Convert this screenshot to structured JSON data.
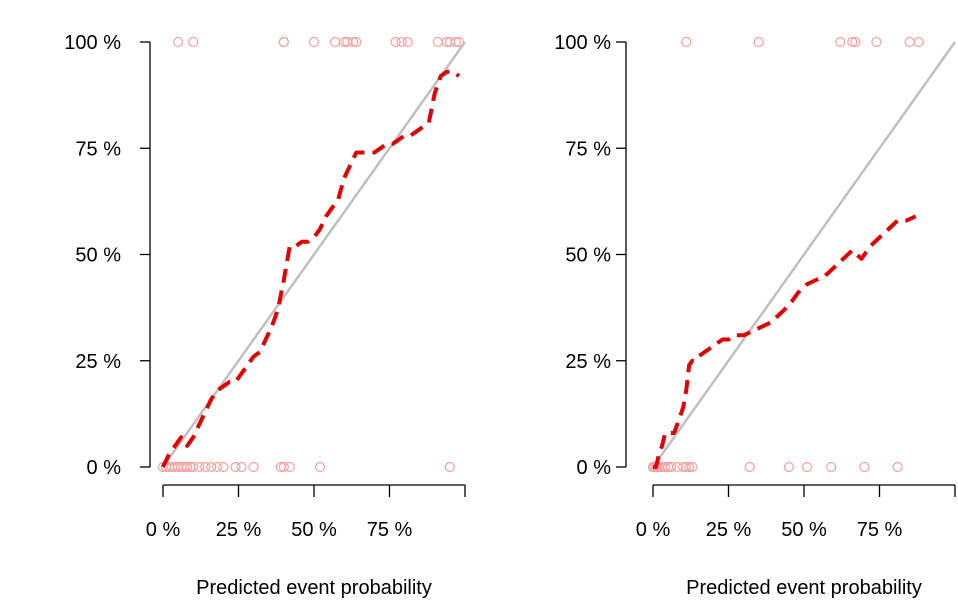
{
  "chart_data": [
    {
      "type": "line",
      "title": "",
      "xlabel": "Predicted event probability",
      "ylabel": "",
      "xlim": [
        0,
        100
      ],
      "ylim": [
        0,
        100
      ],
      "xticks": [
        "0 %",
        "25 %",
        "50 %",
        "75 %"
      ],
      "yticks": [
        "0 %",
        "25 %",
        "50 %",
        "75 %",
        "100 %"
      ],
      "reference_line": {
        "x": [
          0,
          100
        ],
        "y": [
          0,
          100
        ],
        "color": "#c0c0c0"
      },
      "series": [
        {
          "style": "dashed",
          "color": "#e00000",
          "x": [
            0,
            2,
            4,
            6,
            8,
            10,
            12,
            14,
            16,
            18,
            20,
            22,
            24,
            26,
            28,
            30,
            32,
            34,
            36,
            38,
            40,
            42,
            44,
            46,
            48,
            50,
            52,
            54,
            56,
            58,
            60,
            62,
            64,
            66,
            68,
            70,
            72,
            74,
            76,
            78,
            80,
            82,
            84,
            86,
            88,
            90,
            92,
            94,
            96,
            98
          ],
          "y": [
            0,
            3,
            5,
            7,
            5,
            7,
            10,
            13,
            16,
            18,
            19,
            20,
            20,
            22,
            24,
            26,
            27,
            30,
            33,
            37,
            44,
            52,
            52,
            53,
            53,
            54,
            56,
            59,
            61,
            63,
            68,
            71,
            74,
            74,
            74,
            74,
            75,
            76,
            76,
            77,
            78,
            78,
            79,
            80,
            81,
            88,
            92,
            93,
            93,
            92
          ]
        }
      ],
      "scatter": [
        {
          "color": "#f4a0a0",
          "x": [
            5,
            10,
            40,
            40,
            50,
            57,
            60,
            61,
            63,
            64,
            77,
            79,
            81,
            91,
            94,
            95,
            97,
            98
          ],
          "y": [
            100,
            100,
            100,
            100,
            100,
            100,
            100,
            100,
            100,
            100,
            100,
            100,
            100,
            100,
            100,
            100,
            100,
            100
          ]
        },
        {
          "color": "#f4a0a0",
          "x": [
            0,
            1,
            2,
            3,
            4,
            5,
            6,
            7,
            8,
            9,
            10,
            12,
            14,
            16,
            18,
            20,
            24,
            26,
            30,
            39,
            40,
            42,
            52,
            95
          ],
          "y": [
            0,
            0,
            0,
            0,
            0,
            0,
            0,
            0,
            0,
            0,
            0,
            0,
            0,
            0,
            0,
            0,
            0,
            0,
            0,
            0,
            0,
            0,
            0,
            0
          ]
        }
      ]
    },
    {
      "type": "line",
      "title": "",
      "xlabel": "Predicted event probability",
      "ylabel": "",
      "xlim": [
        0,
        100
      ],
      "ylim": [
        0,
        100
      ],
      "xticks": [
        "0 %",
        "25 %",
        "50 %",
        "75 %"
      ],
      "yticks": [
        "0 %",
        "25 %",
        "50 %",
        "75 %",
        "100 %"
      ],
      "reference_line": {
        "x": [
          0,
          100
        ],
        "y": [
          0,
          100
        ],
        "color": "#c0c0c0"
      },
      "series": [
        {
          "style": "dashed",
          "color": "#e00000",
          "x": [
            0,
            1,
            2,
            3,
            4,
            5,
            6,
            7,
            8,
            9,
            10,
            11,
            12,
            13,
            14,
            15,
            17,
            19,
            21,
            23,
            25,
            27,
            30,
            33,
            36,
            39,
            42,
            45,
            48,
            51,
            54,
            57,
            60,
            63,
            66,
            69,
            72,
            75,
            78,
            81,
            84,
            87
          ],
          "y": [
            0,
            0,
            3,
            5,
            8,
            8,
            8,
            8,
            10,
            12,
            14,
            18,
            24,
            25,
            25,
            26,
            27,
            28,
            29,
            30,
            30,
            31,
            31,
            32,
            33,
            34,
            36,
            38,
            41,
            43,
            44,
            45,
            47,
            49,
            51,
            49,
            52,
            54,
            56,
            58,
            58,
            59
          ]
        }
      ],
      "scatter": [
        {
          "color": "#f4a0a0",
          "x": [
            11,
            35,
            62,
            66,
            67,
            74,
            85,
            88
          ],
          "y": [
            100,
            100,
            100,
            100,
            100,
            100,
            100,
            100
          ]
        },
        {
          "color": "#f4a0a0",
          "x": [
            0,
            0.5,
            1,
            1.5,
            2,
            3,
            4,
            5,
            6,
            8,
            10,
            11,
            12,
            13,
            32,
            45,
            51,
            59,
            70,
            81
          ],
          "y": [
            0,
            0,
            0,
            0,
            0,
            0,
            0,
            0,
            0,
            0,
            0,
            0,
            0,
            0,
            0,
            0,
            0,
            0,
            0,
            0
          ]
        }
      ]
    }
  ]
}
